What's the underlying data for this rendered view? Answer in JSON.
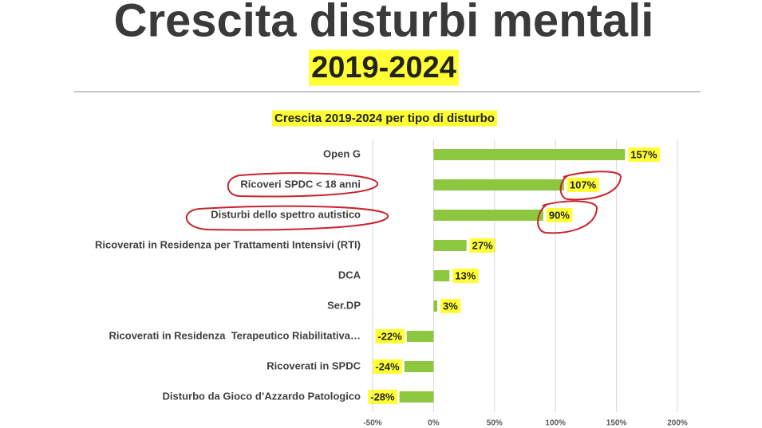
{
  "header": {
    "title": "Crescita disturbi mentali",
    "subtitle": "2019-2024"
  },
  "chart_data": {
    "type": "bar",
    "orientation": "horizontal",
    "title": "Crescita 2019-2024 per tipo di disturbo",
    "categories": [
      "Open G",
      "Ricoveri SPDC < 18 anni",
      "Disturbi dello spettro autistico",
      "Ricoverati in Residenza per Trattamenti Intensivi (RTI)",
      "DCA",
      "Ser.DP",
      "Ricoverati in Residenza  Terapeutico Riabilitativa…",
      "Ricoverati in SPDC",
      "Disturbo da Gioco d’Azzardo Patologico"
    ],
    "values": [
      157,
      107,
      90,
      27,
      13,
      3,
      -22,
      -24,
      -28
    ],
    "value_labels": [
      "157%",
      "107%",
      "90%",
      "27%",
      "13%",
      "3%",
      "-22%",
      "-24%",
      "-28%"
    ],
    "color": "#8dc63f",
    "xlim": [
      -50,
      200
    ],
    "xticks": [
      {
        "value": -50,
        "label": "-50%"
      },
      {
        "value": 0,
        "label": "0%"
      },
      {
        "value": 50,
        "label": "50%"
      },
      {
        "value": 100,
        "label": "100%"
      },
      {
        "value": 150,
        "label": "150%"
      },
      {
        "value": 200,
        "label": "200%"
      }
    ],
    "grid": true
  }
}
